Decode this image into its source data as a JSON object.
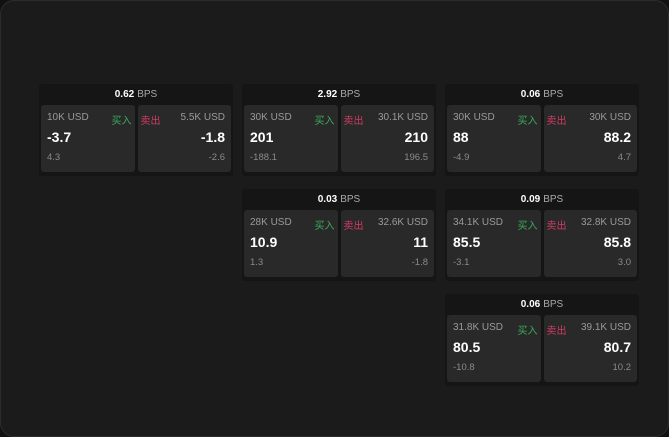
{
  "unit": "BPS",
  "buy_label": "买入",
  "sell_label": "卖出",
  "colors": {
    "buy": "#3daa5c",
    "sell": "#d23a63"
  },
  "panels": [
    {
      "spread": "0.62",
      "bid": {
        "size": "10K USD",
        "price": "-3.7",
        "change": "4.3"
      },
      "ask": {
        "size": "5.5K USD",
        "price": "-1.8",
        "change": "-2.6"
      }
    },
    {
      "spread": "2.92",
      "bid": {
        "size": "30K USD",
        "price": "201",
        "change": "-188.1"
      },
      "ask": {
        "size": "30.1K USD",
        "price": "210",
        "change": "196.5"
      }
    },
    {
      "spread": "0.06",
      "bid": {
        "size": "30K USD",
        "price": "88",
        "change": "-4.9"
      },
      "ask": {
        "size": "30K USD",
        "price": "88.2",
        "change": "4.7"
      }
    },
    {
      "spread": "0.03",
      "bid": {
        "size": "28K USD",
        "price": "10.9",
        "change": "1.3"
      },
      "ask": {
        "size": "32.6K USD",
        "price": "11",
        "change": "-1.8"
      }
    },
    {
      "spread": "0.09",
      "bid": {
        "size": "34.1K USD",
        "price": "85.5",
        "change": "-3.1"
      },
      "ask": {
        "size": "32.8K USD",
        "price": "85.8",
        "change": "3.0"
      }
    },
    {
      "spread": "0.06",
      "bid": {
        "size": "31.8K USD",
        "price": "80.5",
        "change": "-10.8"
      },
      "ask": {
        "size": "39.1K USD",
        "price": "80.7",
        "change": "10.2"
      }
    }
  ]
}
